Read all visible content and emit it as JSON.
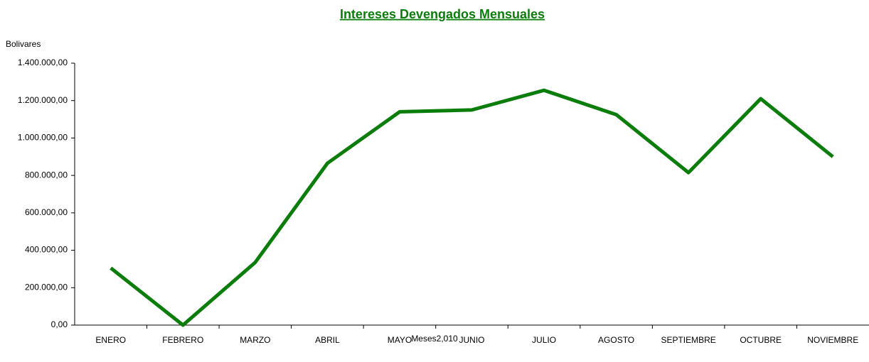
{
  "chart_data": {
    "type": "line",
    "title": "Intereses Devengados Mensuales",
    "y_label": "Bolivares",
    "x_label": "Meses2,010",
    "categories": [
      "ENERO",
      "FEBRERO",
      "MARZO",
      "ABRIL",
      "MAYO",
      "JUNIO",
      "JULIO",
      "AGOSTO",
      "SEPTIEMBRE",
      "OCTUBRE",
      "NOVIEMBRE"
    ],
    "values": [
      305000,
      0,
      335000,
      865000,
      1140000,
      1150000,
      1255000,
      1125000,
      815000,
      1210000,
      900000
    ],
    "color": "#0b7d0b",
    "ylim": [
      0,
      1400000
    ],
    "yticks": [
      {
        "value": 0,
        "label": "0,00"
      },
      {
        "value": 200000,
        "label": "200.000,00"
      },
      {
        "value": 400000,
        "label": "400.000,00"
      },
      {
        "value": 600000,
        "label": "600.000,00"
      },
      {
        "value": 800000,
        "label": "800.000,00"
      },
      {
        "value": 1000000,
        "label": "1.000.000,00"
      },
      {
        "value": 1200000,
        "label": "1.200.000,00"
      },
      {
        "value": 1400000,
        "label": "1.400.000,00"
      }
    ],
    "grid": false
  }
}
